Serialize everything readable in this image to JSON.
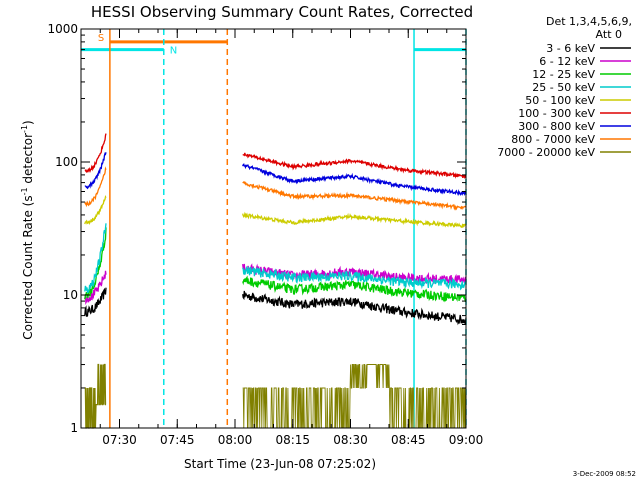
{
  "chart_data": {
    "type": "line",
    "title": "HESSI Observing Summary Count Rates, Corrected",
    "xlabel": "Start Time (23-Jun-08 07:25:02)",
    "ylabel_main": "Corrected Count Rate (s",
    "ylabel_sup1": "-1",
    "ylabel_mid": " detector",
    "ylabel_sup2": "-1",
    "ylabel_end": ")",
    "y_scale": "log",
    "ylim": [
      1,
      1000
    ],
    "xlim_minutes": [
      -5,
      95
    ],
    "x_ticks": [
      {
        "t": 5,
        "label": "07:30"
      },
      {
        "t": 20,
        "label": "07:45"
      },
      {
        "t": 35,
        "label": "08:00"
      },
      {
        "t": 50,
        "label": "08:15"
      },
      {
        "t": 65,
        "label": "08:30"
      },
      {
        "t": 80,
        "label": "08:45"
      },
      {
        "t": 95,
        "label": "09:00"
      }
    ],
    "y_ticks": [
      {
        "v": 1,
        "label": "1"
      },
      {
        "v": 10,
        "label": "10"
      },
      {
        "v": 100,
        "label": "100"
      },
      {
        "v": 1000,
        "label": "1000"
      }
    ],
    "legend": {
      "header_line1": "Det 1,3,4,5,6,9,",
      "header_line2": "Att 0",
      "placement": "right"
    },
    "series": [
      {
        "name": "3 - 6 keV",
        "color": "#000000",
        "segA": {
          "t0": -4,
          "t1": 1.5,
          "v0": 7.5,
          "v1": 11
        },
        "segB": {
          "t0": 37,
          "t1": 95,
          "pts": [
            [
              37,
              10
            ],
            [
              50,
              8.5
            ],
            [
              65,
              9
            ],
            [
              78,
              7.5
            ],
            [
              95,
              6.5
            ]
          ]
        }
      },
      {
        "name": "6 - 12 keV",
        "color": "#cc00cc",
        "segA": {
          "t0": -4,
          "t1": 1.5,
          "v0": 9.5,
          "v1": 15
        },
        "segB": {
          "t0": 37,
          "t1": 95,
          "pts": [
            [
              37,
              16
            ],
            [
              50,
              14
            ],
            [
              65,
              15
            ],
            [
              78,
              13.5
            ],
            [
              95,
              13
            ]
          ]
        }
      },
      {
        "name": "12 - 25 keV",
        "color": "#00cc00",
        "segA": {
          "t0": -4,
          "t1": 1.5,
          "v0": 10,
          "v1": 30
        },
        "segB": {
          "t0": 37,
          "t1": 95,
          "pts": [
            [
              37,
              13
            ],
            [
              50,
              11
            ],
            [
              65,
              12
            ],
            [
              78,
              10.5
            ],
            [
              95,
              9.5
            ]
          ]
        }
      },
      {
        "name": "25 - 50 keV",
        "color": "#00cccc",
        "segA": {
          "t0": -4,
          "t1": 1.5,
          "v0": 11,
          "v1": 35
        },
        "segB": {
          "t0": 37,
          "t1": 95,
          "pts": [
            [
              37,
              15.5
            ],
            [
              50,
              13.5
            ],
            [
              65,
              14
            ],
            [
              78,
              12.5
            ],
            [
              95,
              12
            ]
          ]
        }
      },
      {
        "name": "50 - 100 keV",
        "color": "#cccc00",
        "segA": {
          "t0": -4,
          "t1": 1.5,
          "v0": 35,
          "v1": 55
        },
        "segB": {
          "t0": 37,
          "t1": 95,
          "pts": [
            [
              37,
              40
            ],
            [
              50,
              35
            ],
            [
              65,
              39
            ],
            [
              78,
              36
            ],
            [
              95,
              33
            ]
          ]
        }
      },
      {
        "name": "100 - 300 keV",
        "color": "#dd0000",
        "segA": {
          "t0": -4,
          "t1": 1.5,
          "v0": 85,
          "v1": 160
        },
        "segB": {
          "t0": 37,
          "t1": 95,
          "pts": [
            [
              37,
              115
            ],
            [
              50,
              92
            ],
            [
              65,
              102
            ],
            [
              78,
              88
            ],
            [
              95,
              78
            ]
          ]
        }
      },
      {
        "name": "300 - 800 keV",
        "color": "#0000dd",
        "segA": {
          "t0": -4,
          "t1": 1.5,
          "v0": 65,
          "v1": 120
        },
        "segB": {
          "t0": 37,
          "t1": 95,
          "pts": [
            [
              37,
              95
            ],
            [
              50,
              72
            ],
            [
              65,
              78
            ],
            [
              78,
              66
            ],
            [
              95,
              58
            ]
          ]
        }
      },
      {
        "name": "800 - 7000 keV",
        "color": "#ff7700",
        "segA": {
          "t0": -4,
          "t1": 1.5,
          "v0": 48,
          "v1": 90
        },
        "segB": {
          "t0": 37,
          "t1": 95,
          "pts": [
            [
              37,
              70
            ],
            [
              50,
              55
            ],
            [
              65,
              56
            ],
            [
              78,
              51
            ],
            [
              95,
              45
            ]
          ]
        }
      },
      {
        "name": "7000 - 20000 keV",
        "color": "#808000",
        "segA": {
          "t0": -4,
          "t1": 1.5,
          "v0": 1,
          "v1": 3.5
        },
        "segB": {
          "t0": 37,
          "t1": 95,
          "pts": [
            [
              37,
              2
            ],
            [
              50,
              2
            ],
            [
              65,
              2
            ],
            [
              78,
              2
            ],
            [
              95,
              2
            ]
          ]
        }
      }
    ],
    "flags": [
      {
        "label": "S",
        "color": "#ff7700",
        "t0": 2.5,
        "t1": 33,
        "level": 800
      },
      {
        "label": "N",
        "color": "#00e5e5",
        "t0": -5,
        "t1": 16.5,
        "level": 700
      },
      {
        "label": "",
        "color": "#00e5e5",
        "t0": 81.5,
        "t1": 95,
        "level": 700
      }
    ],
    "markers": [
      {
        "t": 2.5,
        "color": "#ff7700",
        "style": "solid"
      },
      {
        "t": 16.5,
        "color": "#00e5e5",
        "style": "dashed"
      },
      {
        "t": 33,
        "color": "#ff7700",
        "style": "dashed"
      },
      {
        "t": 81.5,
        "color": "#00e5e5",
        "style": "solid"
      },
      {
        "t": 95,
        "color": "#00e5e5",
        "style": "dashed"
      }
    ]
  },
  "footer": {
    "date": "3-Dec-2009 08:52"
  }
}
